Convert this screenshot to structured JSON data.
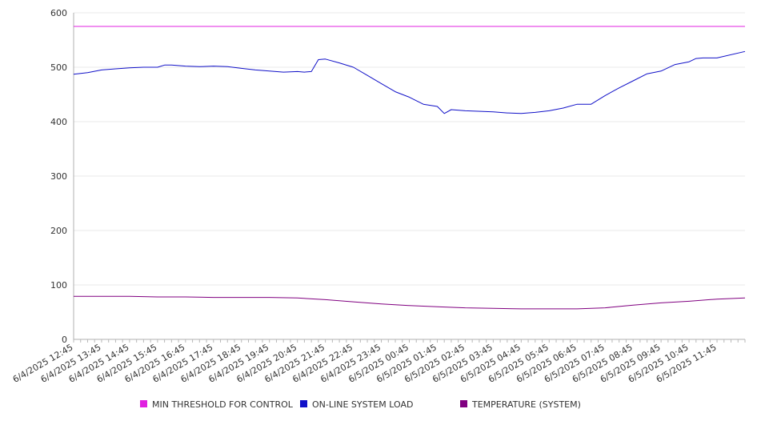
{
  "chart_data": {
    "type": "line",
    "title": "",
    "xlabel": "",
    "ylabel": "",
    "ylim": [
      0,
      600
    ],
    "y_ticks": [
      0,
      100,
      200,
      300,
      400,
      500,
      600
    ],
    "x_tick_labels": [
      "6/4/2025 12:45",
      "6/4/2025 13:45",
      "6/4/2025 14:45",
      "6/4/2025 15:45",
      "6/4/2025 16:45",
      "6/4/2025 17:45",
      "6/4/2025 18:45",
      "6/4/2025 19:45",
      "6/4/2025 20:45",
      "6/4/2025 21:45",
      "6/4/2025 22:45",
      "6/4/2025 23:45",
      "6/5/2025 00:45",
      "6/5/2025 01:45",
      "6/5/2025 02:45",
      "6/5/2025 03:45",
      "6/5/2025 04:45",
      "6/5/2025 05:45",
      "6/5/2025 06:45",
      "6/5/2025 07:45",
      "6/5/2025 08:45",
      "6/5/2025 09:45",
      "6/5/2025 10:45",
      "6/5/2025 11:45"
    ],
    "x_range": [
      "6/4/2025 12:45",
      "6/5/2025 12:45"
    ],
    "grid": "horizontal",
    "legend_position": "bottom",
    "series": [
      {
        "name": "MIN THRESHOLD FOR CONTROL",
        "color": "#e020e0",
        "points": [
          [
            "6/4/2025 12:45",
            575
          ],
          [
            "6/5/2025 12:45",
            575
          ]
        ]
      },
      {
        "name": "ON-LINE SYSTEM LOAD",
        "color": "#1010c8",
        "points": [
          [
            "6/4/2025 12:45",
            487
          ],
          [
            "6/4/2025 13:15",
            490
          ],
          [
            "6/4/2025 13:45",
            495
          ],
          [
            "6/4/2025 14:15",
            497
          ],
          [
            "6/4/2025 14:45",
            499
          ],
          [
            "6/4/2025 15:15",
            500
          ],
          [
            "6/4/2025 15:45",
            500
          ],
          [
            "6/4/2025 16:00",
            504
          ],
          [
            "6/4/2025 16:15",
            504
          ],
          [
            "6/4/2025 16:45",
            502
          ],
          [
            "6/4/2025 17:15",
            501
          ],
          [
            "6/4/2025 17:45",
            502
          ],
          [
            "6/4/2025 18:15",
            501
          ],
          [
            "6/4/2025 18:45",
            498
          ],
          [
            "6/4/2025 19:15",
            495
          ],
          [
            "6/4/2025 19:45",
            493
          ],
          [
            "6/4/2025 20:15",
            491
          ],
          [
            "6/4/2025 20:45",
            492
          ],
          [
            "6/4/2025 21:00",
            491
          ],
          [
            "6/4/2025 21:15",
            492
          ],
          [
            "6/4/2025 21:30",
            514
          ],
          [
            "6/4/2025 21:45",
            515
          ],
          [
            "6/4/2025 22:15",
            508
          ],
          [
            "6/4/2025 22:45",
            500
          ],
          [
            "6/4/2025 23:15",
            485
          ],
          [
            "6/4/2025 23:45",
            470
          ],
          [
            "6/5/2025 00:15",
            455
          ],
          [
            "6/5/2025 00:45",
            445
          ],
          [
            "6/5/2025 01:15",
            432
          ],
          [
            "6/5/2025 01:45",
            428
          ],
          [
            "6/5/2025 02:00",
            415
          ],
          [
            "6/5/2025 02:15",
            422
          ],
          [
            "6/5/2025 02:45",
            420
          ],
          [
            "6/5/2025 03:45",
            418
          ],
          [
            "6/5/2025 04:15",
            416
          ],
          [
            "6/5/2025 04:45",
            415
          ],
          [
            "6/5/2025 05:15",
            417
          ],
          [
            "6/5/2025 05:45",
            420
          ],
          [
            "6/5/2025 06:15",
            425
          ],
          [
            "6/5/2025 06:45",
            432
          ],
          [
            "6/5/2025 07:15",
            432
          ],
          [
            "6/5/2025 07:45",
            448
          ],
          [
            "6/5/2025 08:15",
            462
          ],
          [
            "6/5/2025 08:45",
            475
          ],
          [
            "6/5/2025 09:15",
            488
          ],
          [
            "6/5/2025 09:45",
            493
          ],
          [
            "6/5/2025 10:15",
            505
          ],
          [
            "6/5/2025 10:45",
            510
          ],
          [
            "6/5/2025 11:00",
            516
          ],
          [
            "6/5/2025 11:15",
            517
          ],
          [
            "6/5/2025 11:30",
            517
          ],
          [
            "6/5/2025 11:45",
            517
          ],
          [
            "6/5/2025 12:45",
            529
          ]
        ]
      },
      {
        "name": "TEMPERATURE (SYSTEM)",
        "color": "#800080",
        "points": [
          [
            "6/4/2025 12:45",
            79
          ],
          [
            "6/4/2025 13:45",
            79
          ],
          [
            "6/4/2025 14:45",
            79
          ],
          [
            "6/4/2025 15:45",
            78
          ],
          [
            "6/4/2025 16:45",
            78
          ],
          [
            "6/4/2025 17:45",
            77
          ],
          [
            "6/4/2025 18:45",
            77
          ],
          [
            "6/4/2025 19:45",
            77
          ],
          [
            "6/4/2025 20:45",
            76
          ],
          [
            "6/4/2025 21:45",
            73
          ],
          [
            "6/4/2025 22:45",
            69
          ],
          [
            "6/4/2025 23:45",
            65
          ],
          [
            "6/5/2025 00:45",
            62
          ],
          [
            "6/5/2025 01:45",
            60
          ],
          [
            "6/5/2025 02:45",
            58
          ],
          [
            "6/5/2025 03:45",
            57
          ],
          [
            "6/5/2025 04:45",
            56
          ],
          [
            "6/5/2025 05:45",
            56
          ],
          [
            "6/5/2025 06:45",
            56
          ],
          [
            "6/5/2025 07:45",
            58
          ],
          [
            "6/5/2025 08:45",
            63
          ],
          [
            "6/5/2025 09:45",
            67
          ],
          [
            "6/5/2025 10:45",
            70
          ],
          [
            "6/5/2025 11:45",
            74
          ],
          [
            "6/5/2025 12:45",
            76
          ]
        ]
      }
    ]
  }
}
